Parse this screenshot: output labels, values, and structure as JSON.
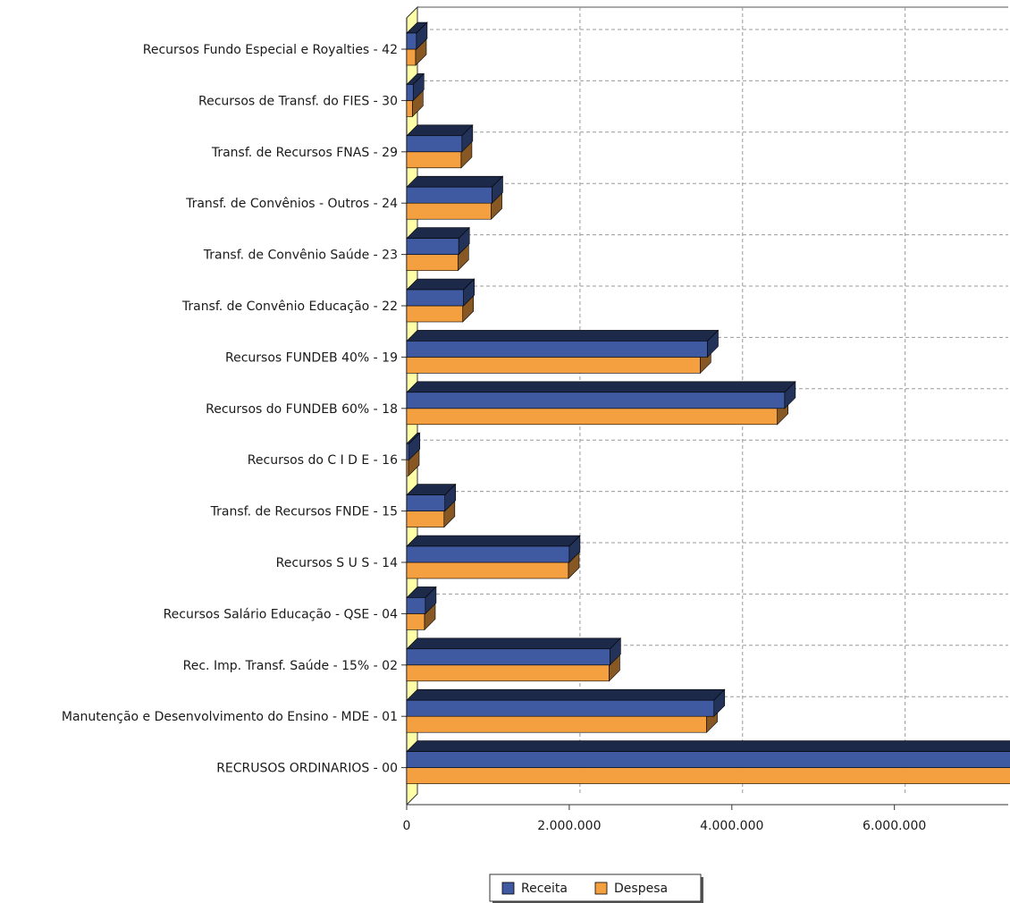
{
  "chart_data": {
    "type": "bar",
    "orientation": "horizontal",
    "style": "3d",
    "categories": [
      "Recursos Fundo Especial e Royalties - 42",
      "Recursos de Transf. do FIES - 30",
      "Transf. de Recursos FNAS - 29",
      "Transf. de Convênios - Outros - 24",
      "Transf. de Convênio Saúde - 23",
      "Transf. de Convênio Educação - 22",
      "Recursos FUNDEB 40% - 19",
      "Recursos do FUNDEB 60% - 18",
      "Recursos do C I D E  - 16",
      "Transf. de Recursos FNDE - 15",
      "Recursos S U S - 14",
      "Recursos Salário Educação - QSE - 04",
      "Rec. Imp. Transf. Saúde - 15% - 02",
      "Manutenção e Desenvolvimento do Ensino - MDE - 01",
      "RECRUSOS ORDINARIOS - 00"
    ],
    "series": [
      {
        "name": "Receita",
        "color": "#3f5aa0",
        "values": [
          120000,
          80000,
          680000,
          1050000,
          640000,
          700000,
          3700000,
          4650000,
          30000,
          470000,
          2000000,
          230000,
          2500000,
          3780000,
          7600000
        ]
      },
      {
        "name": "Despesa",
        "color": "#f5a040",
        "values": [
          110000,
          70000,
          670000,
          1040000,
          630000,
          690000,
          3610000,
          4560000,
          20000,
          460000,
          1990000,
          220000,
          2490000,
          3690000,
          7450000
        ]
      }
    ],
    "x_ticks": [
      "0",
      "2.000.000",
      "4.000.000",
      "6.000.000"
    ],
    "xlim": [
      0,
      7400000
    ],
    "grid": true,
    "legend_position": "bottom-center"
  }
}
